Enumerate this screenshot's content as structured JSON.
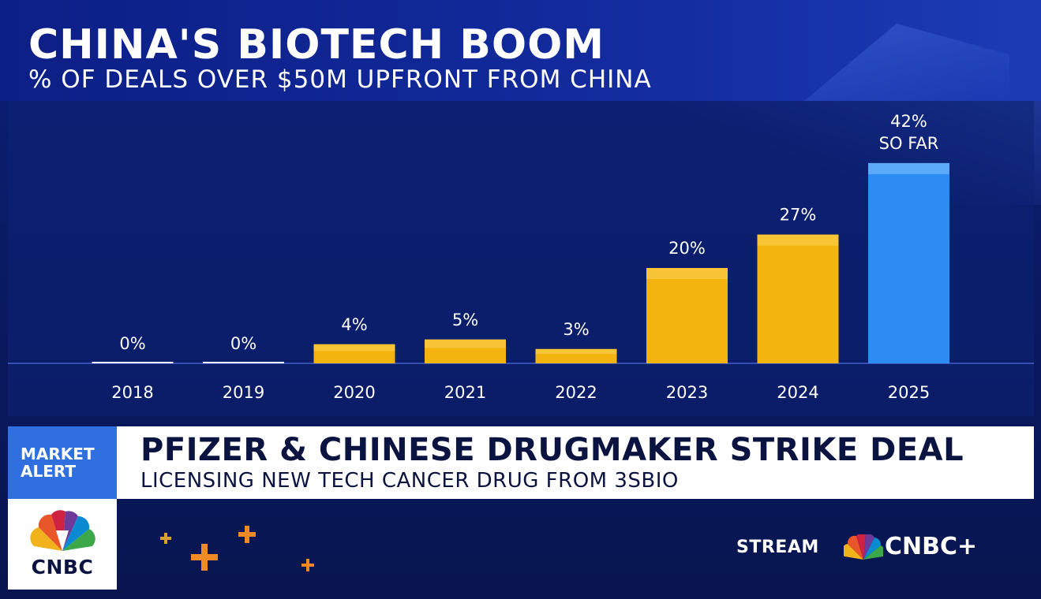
{
  "header": {
    "title": "CHINA'S BIOTECH BOOM",
    "subtitle": "% OF DEALS OVER $50M UPFRONT FROM CHINA"
  },
  "chart_data": {
    "type": "bar",
    "title": "CHINA'S BIOTECH BOOM",
    "subtitle": "% OF DEALS OVER $50M UPFRONT FROM CHINA",
    "categories": [
      "2018",
      "2019",
      "2020",
      "2021",
      "2022",
      "2023",
      "2024",
      "2025"
    ],
    "values": [
      0,
      0,
      4,
      5,
      3,
      20,
      27,
      42
    ],
    "value_labels": [
      "0%",
      "0%",
      "4%",
      "5%",
      "3%",
      "20%",
      "27%",
      "42%"
    ],
    "annotations": [
      {
        "category": "2025",
        "text": "SO FAR"
      }
    ],
    "ylim": [
      0,
      45
    ],
    "grid": false,
    "colors": {
      "default": "#f4b40f",
      "highlight": "#2d8cf3",
      "highlight_category": "2025",
      "zero_line": "#ffffff"
    }
  },
  "banner": {
    "alert_label": "MARKET\nALERT",
    "headline": "PFIZER & CHINESE DRUGMAKER STRIKE DEAL",
    "subline": "LICENSING NEW TECH CANCER DRUG FROM 3SBIO"
  },
  "logo": {
    "icon": "peacock-icon",
    "wordmark": "CNBC"
  },
  "stream": {
    "label": "STREAM",
    "brand": "CNBC+",
    "icon": "peacock-icon"
  },
  "colors": {
    "background": "#0a1a63",
    "alert_blue": "#2f6fe0",
    "text_dark": "#0b1440"
  }
}
